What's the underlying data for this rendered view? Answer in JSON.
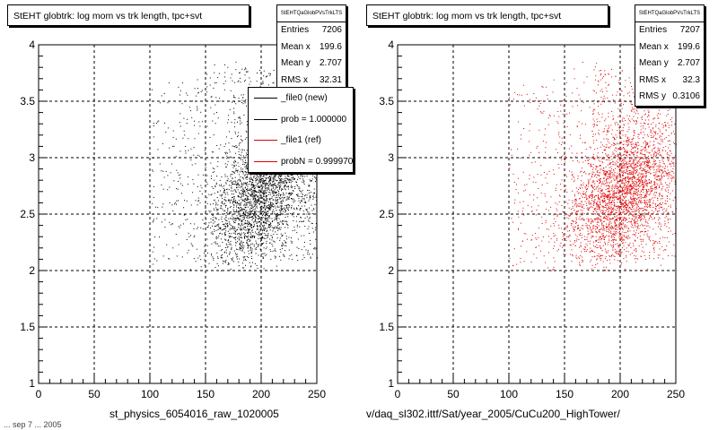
{
  "colors": {
    "new": "#000000",
    "ref": "#e00000"
  },
  "footer_text": "... sep 7 ... 2005",
  "panels": [
    {
      "id": "left",
      "title": "StEHT globtrk: log mom vs trk length, tpc+svt",
      "x_title": "st_physics_6054016_raw_1020005",
      "stats": {
        "name": "StEHTQaGlobPVsTrkLTS",
        "rows": [
          {
            "label": "Entries",
            "value": "7206"
          },
          {
            "label": "Mean x",
            "value": "199.6"
          },
          {
            "label": "Mean y",
            "value": "2.707"
          },
          {
            "label": "RMS x",
            "value": "32.31"
          }
        ]
      },
      "legend": [
        {
          "label": "_file0 (new)",
          "color": "#000000"
        },
        {
          "label": "prob = 1.000000",
          "color": "#000000"
        },
        {
          "label": "_file1 (ref)",
          "color": "#e00000"
        },
        {
          "label": "probN = 0.999970",
          "color": "#e00000"
        }
      ]
    },
    {
      "id": "right",
      "title": "StEHT globtrk: log mom vs trk length, tpc+svt",
      "x_title": "v/daq_sl302.ittf/Sat/year_2005/CuCu200_HighTower/",
      "stats": {
        "name": "StEHTQaGlobPVsTrkLTS",
        "rows": [
          {
            "label": "Entries",
            "value": "7207"
          },
          {
            "label": "Mean x",
            "value": "199.6"
          },
          {
            "label": "Mean y",
            "value": "2.707"
          },
          {
            "label": "RMS x",
            "value": "32.3"
          },
          {
            "label": "RMS y",
            "value": "0.3106"
          }
        ]
      }
    }
  ],
  "chart_data": [
    {
      "type": "scatter",
      "title": "StEHT globtrk: log mom vs trk length, tpc+svt",
      "xlabel": "st_physics_6054016_raw_1020005",
      "ylabel": "",
      "xlim": [
        0,
        250
      ],
      "ylim": [
        1,
        4
      ],
      "x_ticks": [
        0,
        50,
        100,
        150,
        200,
        250
      ],
      "y_ticks": [
        1,
        1.5,
        2,
        2.5,
        3,
        3.5,
        4
      ],
      "grid": true,
      "series": [
        {
          "name": "_file0 (new)",
          "color": "#000000",
          "entries": 7206,
          "mean_x": 199.6,
          "mean_y": 2.707,
          "rms_x": 32.31,
          "rms_y": 0.3106,
          "x_range": [
            100,
            250
          ],
          "y_range": [
            2.0,
            3.9
          ]
        }
      ]
    },
    {
      "type": "scatter",
      "title": "StEHT globtrk: log mom vs trk length, tpc+svt",
      "xlabel": "v/daq_sl302.ittf/Sat/year_2005/CuCu200_HighTower/",
      "ylabel": "",
      "xlim": [
        0,
        250
      ],
      "ylim": [
        1,
        4
      ],
      "x_ticks": [
        0,
        50,
        100,
        150,
        200,
        250
      ],
      "y_ticks": [
        1,
        1.5,
        2,
        2.5,
        3,
        3.5,
        4
      ],
      "grid": true,
      "series": [
        {
          "name": "_file1 (ref)",
          "color": "#e00000",
          "entries": 7207,
          "mean_x": 199.6,
          "mean_y": 2.707,
          "rms_x": 32.3,
          "rms_y": 0.3106,
          "x_range": [
            100,
            250
          ],
          "y_range": [
            2.0,
            3.9
          ]
        }
      ]
    }
  ]
}
